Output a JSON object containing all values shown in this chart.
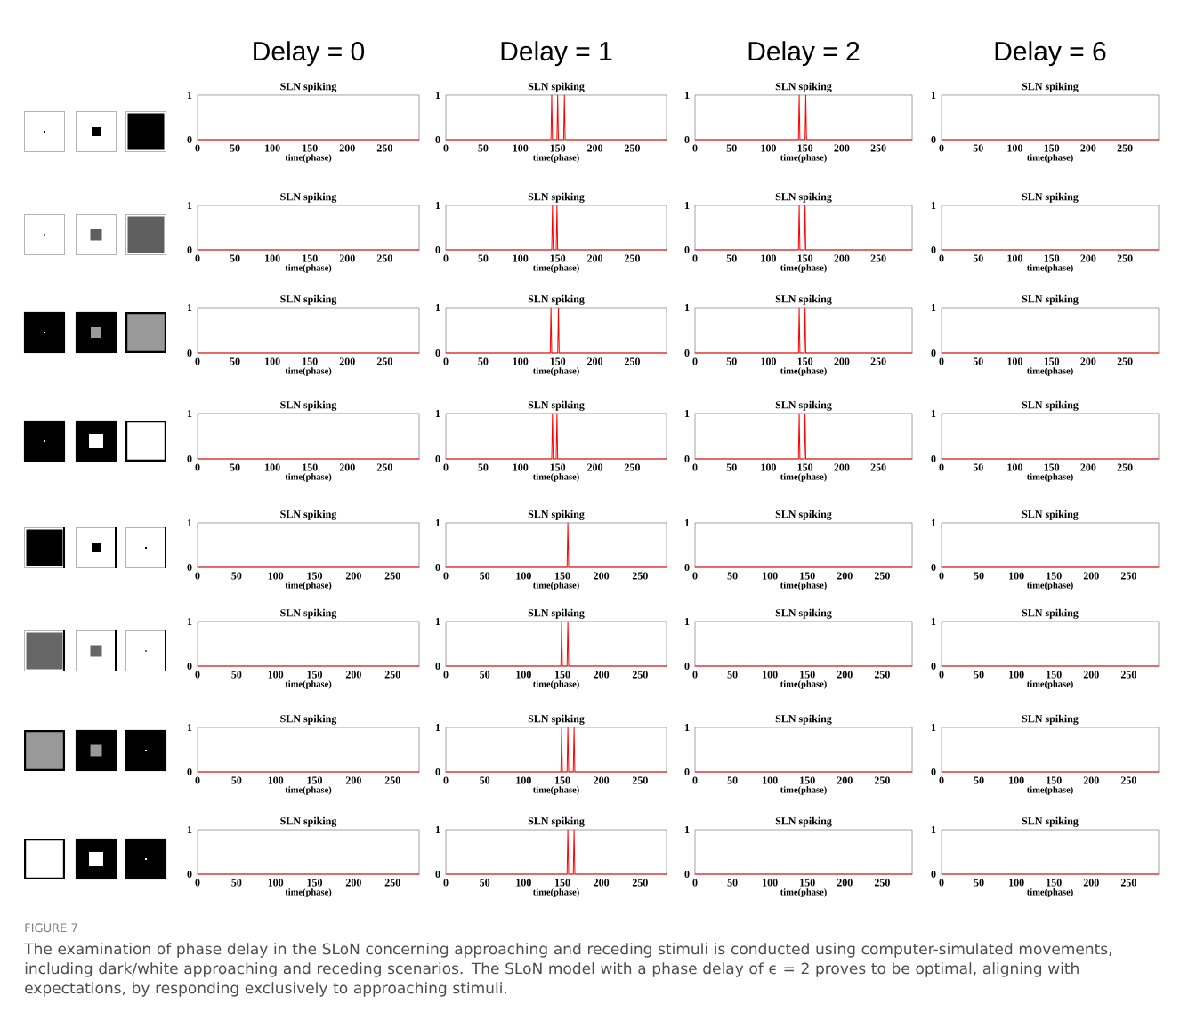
{
  "chart_data": [
    {
      "type": "line",
      "title": "SLN spiking",
      "xlabel": "time(phase)",
      "annotations": [
        "Delay = 0"
      ],
      "xlim": [
        0,
        296
      ],
      "ylim": [
        0,
        1
      ],
      "xticks": [
        0,
        50,
        100,
        150,
        200,
        250
      ],
      "yticks": [
        0,
        1
      ],
      "series": [
        {
          "color": "#ff0000",
          "x": [
            0,
            296
          ],
          "values": [
            0,
            0
          ]
        }
      ]
    },
    {
      "type": "line",
      "title": "SLN spiking",
      "xlabel": "time(phase)",
      "annotations": [
        "Delay = 1"
      ],
      "xlim": [
        0,
        296
      ],
      "ylim": [
        0,
        1
      ],
      "xticks": [
        0,
        50,
        100,
        150,
        200,
        250
      ],
      "yticks": [
        0,
        1
      ],
      "series": [
        {
          "color": "#ff0000",
          "x": [
            0,
            141,
            142,
            143,
            149,
            150,
            151,
            158,
            159,
            160,
            296
          ],
          "values": [
            0,
            0,
            1,
            0,
            0,
            1,
            0,
            0,
            1,
            0,
            0
          ]
        }
      ]
    },
    {
      "type": "line",
      "title": "SLN spiking",
      "xlabel": "time(phase)",
      "annotations": [
        "Delay = 2"
      ],
      "xlim": [
        0,
        296
      ],
      "ylim": [
        0,
        1
      ],
      "xticks": [
        0,
        50,
        100,
        150,
        200,
        250
      ],
      "yticks": [
        0,
        1
      ],
      "series": [
        {
          "color": "#ff0000",
          "x": [
            0,
            141,
            142,
            143,
            150,
            151,
            152,
            296
          ],
          "values": [
            0,
            0,
            1,
            0,
            0,
            1,
            0,
            0
          ]
        }
      ]
    },
    {
      "type": "line",
      "title": "SLN spiking",
      "xlabel": "time(phase)",
      "annotations": [
        "Delay = 6"
      ],
      "xlim": [
        0,
        296
      ],
      "ylim": [
        0,
        1
      ],
      "xticks": [
        0,
        50,
        100,
        150,
        200,
        250
      ],
      "yticks": [
        0,
        1
      ],
      "series": [
        {
          "color": "#ff0000",
          "x": [
            0,
            296
          ],
          "values": [
            0,
            0
          ]
        }
      ]
    },
    {
      "type": "line",
      "title": "SLN spiking",
      "xlabel": "time(phase)",
      "xlim": [
        0,
        296
      ],
      "ylim": [
        0,
        1
      ],
      "xticks": [
        0,
        50,
        100,
        150,
        200,
        250
      ],
      "yticks": [
        0,
        1
      ],
      "series": [
        {
          "color": "#ff0000",
          "x": [
            0,
            296
          ],
          "values": [
            0,
            0
          ]
        }
      ]
    },
    {
      "type": "line",
      "title": "SLN spiking",
      "xlabel": "time(phase)",
      "xlim": [
        0,
        296
      ],
      "ylim": [
        0,
        1
      ],
      "xticks": [
        0,
        50,
        100,
        150,
        200,
        250
      ],
      "yticks": [
        0,
        1
      ],
      "series": [
        {
          "color": "#ff0000",
          "x": [
            0,
            142,
            143,
            144,
            148,
            149,
            150,
            296
          ],
          "values": [
            0,
            0,
            1,
            0,
            0,
            1,
            0,
            0
          ]
        }
      ]
    },
    {
      "type": "line",
      "title": "SLN spiking",
      "xlabel": "time(phase)",
      "xlim": [
        0,
        296
      ],
      "ylim": [
        0,
        1
      ],
      "xticks": [
        0,
        50,
        100,
        150,
        200,
        250
      ],
      "yticks": [
        0,
        1
      ],
      "series": [
        {
          "color": "#ff0000",
          "x": [
            0,
            141,
            142,
            143,
            149,
            150,
            151,
            296
          ],
          "values": [
            0,
            0,
            1,
            0,
            0,
            1,
            0,
            0
          ]
        }
      ]
    },
    {
      "type": "line",
      "title": "SLN spiking",
      "xlabel": "time(phase)",
      "xlim": [
        0,
        296
      ],
      "ylim": [
        0,
        1
      ],
      "xticks": [
        0,
        50,
        100,
        150,
        200,
        250
      ],
      "yticks": [
        0,
        1
      ],
      "series": [
        {
          "color": "#ff0000",
          "x": [
            0,
            296
          ],
          "values": [
            0,
            0
          ]
        }
      ]
    },
    {
      "type": "line",
      "title": "SLN spiking",
      "xlabel": "time(phase)",
      "xlim": [
        0,
        296
      ],
      "ylim": [
        0,
        1
      ],
      "xticks": [
        0,
        50,
        100,
        150,
        200,
        250
      ],
      "yticks": [
        0,
        1
      ],
      "series": [
        {
          "color": "#ff0000",
          "x": [
            0,
            296
          ],
          "values": [
            0,
            0
          ]
        }
      ]
    },
    {
      "type": "line",
      "title": "SLN spiking",
      "xlabel": "time(phase)",
      "xlim": [
        0,
        296
      ],
      "ylim": [
        0,
        1
      ],
      "xticks": [
        0,
        50,
        100,
        150,
        200,
        250
      ],
      "yticks": [
        0,
        1
      ],
      "series": [
        {
          "color": "#ff0000",
          "x": [
            0,
            140,
            141,
            142,
            150,
            151,
            152,
            296
          ],
          "values": [
            0,
            0,
            1,
            0,
            0,
            1,
            0,
            0
          ]
        }
      ]
    },
    {
      "type": "line",
      "title": "SLN spiking",
      "xlabel": "time(phase)",
      "xlim": [
        0,
        296
      ],
      "ylim": [
        0,
        1
      ],
      "xticks": [
        0,
        50,
        100,
        150,
        200,
        250
      ],
      "yticks": [
        0,
        1
      ],
      "series": [
        {
          "color": "#ff0000",
          "x": [
            0,
            141,
            142,
            143,
            149,
            150,
            151,
            296
          ],
          "values": [
            0,
            0,
            1,
            0,
            0,
            1,
            0,
            0
          ]
        }
      ]
    },
    {
      "type": "line",
      "title": "SLN spiking",
      "xlabel": "time(phase)",
      "xlim": [
        0,
        296
      ],
      "ylim": [
        0,
        1
      ],
      "xticks": [
        0,
        50,
        100,
        150,
        200,
        250
      ],
      "yticks": [
        0,
        1
      ],
      "series": [
        {
          "color": "#ff0000",
          "x": [
            0,
            296
          ],
          "values": [
            0,
            0
          ]
        }
      ]
    },
    {
      "type": "line",
      "title": "SLN spiking",
      "xlabel": "time(phase)",
      "xlim": [
        0,
        296
      ],
      "ylim": [
        0,
        1
      ],
      "xticks": [
        0,
        50,
        100,
        150,
        200,
        250
      ],
      "yticks": [
        0,
        1
      ],
      "series": [
        {
          "color": "#ff0000",
          "x": [
            0,
            296
          ],
          "values": [
            0,
            0
          ]
        }
      ]
    },
    {
      "type": "line",
      "title": "SLN spiking",
      "xlabel": "time(phase)",
      "xlim": [
        0,
        296
      ],
      "ylim": [
        0,
        1
      ],
      "xticks": [
        0,
        50,
        100,
        150,
        200,
        250
      ],
      "yticks": [
        0,
        1
      ],
      "series": [
        {
          "color": "#ff0000",
          "x": [
            0,
            142,
            143,
            144,
            148,
            149,
            150,
            296
          ],
          "values": [
            0,
            0,
            1,
            0,
            0,
            1,
            0,
            0
          ]
        }
      ]
    },
    {
      "type": "line",
      "title": "SLN spiking",
      "xlabel": "time(phase)",
      "xlim": [
        0,
        296
      ],
      "ylim": [
        0,
        1
      ],
      "xticks": [
        0,
        50,
        100,
        150,
        200,
        250
      ],
      "yticks": [
        0,
        1
      ],
      "series": [
        {
          "color": "#ff0000",
          "x": [
            0,
            141,
            142,
            143,
            149,
            150,
            151,
            296
          ],
          "values": [
            0,
            0,
            1,
            0,
            0,
            1,
            0,
            0
          ]
        }
      ]
    },
    {
      "type": "line",
      "title": "SLN spiking",
      "xlabel": "time(phase)",
      "xlim": [
        0,
        296
      ],
      "ylim": [
        0,
        1
      ],
      "xticks": [
        0,
        50,
        100,
        150,
        200,
        250
      ],
      "yticks": [
        0,
        1
      ],
      "series": [
        {
          "color": "#ff0000",
          "x": [
            0,
            296
          ],
          "values": [
            0,
            0
          ]
        }
      ]
    },
    {
      "type": "line",
      "title": "SLN spiking",
      "xlabel": "time(phase)",
      "xlim": [
        0,
        284
      ],
      "ylim": [
        0,
        1
      ],
      "xticks": [
        0,
        50,
        100,
        150,
        200,
        250
      ],
      "yticks": [
        0,
        1
      ],
      "series": [
        {
          "color": "#ff0000",
          "x": [
            0,
            284
          ],
          "values": [
            0,
            0
          ]
        }
      ]
    },
    {
      "type": "line",
      "title": "SLN spiking",
      "xlabel": "time(phase)",
      "xlim": [
        0,
        284
      ],
      "ylim": [
        0,
        1
      ],
      "xticks": [
        0,
        50,
        100,
        150,
        200,
        250
      ],
      "yticks": [
        0,
        1
      ],
      "series": [
        {
          "color": "#ff0000",
          "x": [
            0,
            156,
            157,
            158,
            284
          ],
          "values": [
            0,
            0,
            1,
            0,
            0
          ]
        }
      ]
    },
    {
      "type": "line",
      "title": "SLN spiking",
      "xlabel": "time(phase)",
      "xlim": [
        0,
        290
      ],
      "ylim": [
        0,
        1
      ],
      "xticks": [
        0,
        50,
        100,
        150,
        200,
        250
      ],
      "yticks": [
        0,
        1
      ],
      "series": [
        {
          "color": "#ff0000",
          "x": [
            0,
            290
          ],
          "values": [
            0,
            0
          ]
        }
      ]
    },
    {
      "type": "line",
      "title": "SLN spiking",
      "xlabel": "time(phase)",
      "xlim": [
        0,
        290
      ],
      "ylim": [
        0,
        1
      ],
      "xticks": [
        0,
        50,
        100,
        150,
        200,
        250
      ],
      "yticks": [
        0,
        1
      ],
      "series": [
        {
          "color": "#ff0000",
          "x": [
            0,
            290
          ],
          "values": [
            0,
            0
          ]
        }
      ]
    },
    {
      "type": "line",
      "title": "SLN spiking",
      "xlabel": "time(phase)",
      "xlim": [
        0,
        284
      ],
      "ylim": [
        0,
        1
      ],
      "xticks": [
        0,
        50,
        100,
        150,
        200,
        250
      ],
      "yticks": [
        0,
        1
      ],
      "series": [
        {
          "color": "#ff0000",
          "x": [
            0,
            284
          ],
          "values": [
            0,
            0
          ]
        }
      ]
    },
    {
      "type": "line",
      "title": "SLN spiking",
      "xlabel": "time(phase)",
      "xlim": [
        0,
        284
      ],
      "ylim": [
        0,
        1
      ],
      "xticks": [
        0,
        50,
        100,
        150,
        200,
        250
      ],
      "yticks": [
        0,
        1
      ],
      "series": [
        {
          "color": "#ff0000",
          "x": [
            0,
            148,
            149,
            150,
            156,
            157,
            158,
            284
          ],
          "values": [
            0,
            0,
            1,
            0,
            0,
            1,
            0,
            0
          ]
        }
      ]
    },
    {
      "type": "line",
      "title": "SLN spiking",
      "xlabel": "time(phase)",
      "xlim": [
        0,
        290
      ],
      "ylim": [
        0,
        1
      ],
      "xticks": [
        0,
        50,
        100,
        150,
        200,
        250
      ],
      "yticks": [
        0,
        1
      ],
      "series": [
        {
          "color": "#ff0000",
          "x": [
            0,
            290
          ],
          "values": [
            0,
            0
          ]
        }
      ]
    },
    {
      "type": "line",
      "title": "SLN spiking",
      "xlabel": "time(phase)",
      "xlim": [
        0,
        290
      ],
      "ylim": [
        0,
        1
      ],
      "xticks": [
        0,
        50,
        100,
        150,
        200,
        250
      ],
      "yticks": [
        0,
        1
      ],
      "series": [
        {
          "color": "#ff0000",
          "x": [
            0,
            290
          ],
          "values": [
            0,
            0
          ]
        }
      ]
    },
    {
      "type": "line",
      "title": "SLN spiking",
      "xlabel": "time(phase)",
      "xlim": [
        0,
        284
      ],
      "ylim": [
        0,
        1
      ],
      "xticks": [
        0,
        50,
        100,
        150,
        200,
        250
      ],
      "yticks": [
        0,
        1
      ],
      "series": [
        {
          "color": "#ff0000",
          "x": [
            0,
            284
          ],
          "values": [
            0,
            0
          ]
        }
      ]
    },
    {
      "type": "line",
      "title": "SLN spiking",
      "xlabel": "time(phase)",
      "xlim": [
        0,
        284
      ],
      "ylim": [
        0,
        1
      ],
      "xticks": [
        0,
        50,
        100,
        150,
        200,
        250
      ],
      "yticks": [
        0,
        1
      ],
      "series": [
        {
          "color": "#ff0000",
          "x": [
            0,
            148,
            149,
            150,
            156,
            157,
            158,
            164,
            165,
            166,
            284
          ],
          "values": [
            0,
            0,
            1,
            0,
            0,
            1,
            0,
            0,
            1,
            0,
            0
          ]
        }
      ]
    },
    {
      "type": "line",
      "title": "SLN spiking",
      "xlabel": "time(phase)",
      "xlim": [
        0,
        290
      ],
      "ylim": [
        0,
        1
      ],
      "xticks": [
        0,
        50,
        100,
        150,
        200,
        250
      ],
      "yticks": [
        0,
        1
      ],
      "series": [
        {
          "color": "#ff0000",
          "x": [
            0,
            290
          ],
          "values": [
            0,
            0
          ]
        }
      ]
    },
    {
      "type": "line",
      "title": "SLN spiking",
      "xlabel": "time(phase)",
      "xlim": [
        0,
        290
      ],
      "ylim": [
        0,
        1
      ],
      "xticks": [
        0,
        50,
        100,
        150,
        200,
        250
      ],
      "yticks": [
        0,
        1
      ],
      "series": [
        {
          "color": "#ff0000",
          "x": [
            0,
            290
          ],
          "values": [
            0,
            0
          ]
        }
      ]
    },
    {
      "type": "line",
      "title": "SLN spiking",
      "xlabel": "time(phase)",
      "xlim": [
        0,
        284
      ],
      "ylim": [
        0,
        1
      ],
      "xticks": [
        0,
        50,
        100,
        150,
        200,
        250
      ],
      "yticks": [
        0,
        1
      ],
      "series": [
        {
          "color": "#ff0000",
          "x": [
            0,
            284
          ],
          "values": [
            0,
            0
          ]
        }
      ]
    },
    {
      "type": "line",
      "title": "SLN spiking",
      "xlabel": "time(phase)",
      "xlim": [
        0,
        284
      ],
      "ylim": [
        0,
        1
      ],
      "xticks": [
        0,
        50,
        100,
        150,
        200,
        250
      ],
      "yticks": [
        0,
        1
      ],
      "series": [
        {
          "color": "#ff0000",
          "x": [
            0,
            156,
            157,
            158,
            164,
            165,
            166,
            284
          ],
          "values": [
            0,
            0,
            1,
            0,
            0,
            1,
            0,
            0
          ]
        }
      ]
    },
    {
      "type": "line",
      "title": "SLN spiking",
      "xlabel": "time(phase)",
      "xlim": [
        0,
        290
      ],
      "ylim": [
        0,
        1
      ],
      "xticks": [
        0,
        50,
        100,
        150,
        200,
        250
      ],
      "yticks": [
        0,
        1
      ],
      "series": [
        {
          "color": "#ff0000",
          "x": [
            0,
            290
          ],
          "values": [
            0,
            0
          ]
        }
      ]
    },
    {
      "type": "line",
      "title": "SLN spiking",
      "xlabel": "time(phase)",
      "xlim": [
        0,
        290
      ],
      "ylim": [
        0,
        1
      ],
      "xticks": [
        0,
        50,
        100,
        150,
        200,
        250
      ],
      "yticks": [
        0,
        1
      ],
      "series": [
        {
          "color": "#ff0000",
          "x": [
            0,
            290
          ],
          "values": [
            0,
            0
          ]
        }
      ]
    },
    {
      "type": "other",
      "annotations": [
        "FIGURE 7",
        "The examination of phase delay in the SLoN concerning approaching and receding stimuli is conducted using computer-simulated movements, including dark/white approaching and receding scenarios. The SLoN model with a phase delay of ϵ = 2 proves to be optimal, aligning with expectations, by responding exclusively to approaching stimuli."
      ]
    }
  ]
}
